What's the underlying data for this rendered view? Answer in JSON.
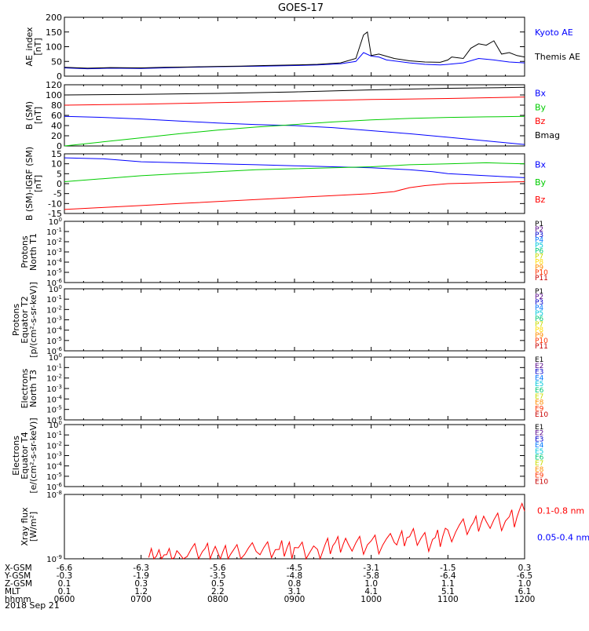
{
  "chart_data": {
    "title": "GOES-17",
    "date": "2018 Sep 21",
    "x_axis": {
      "label": "hhmm",
      "ticks": [
        "0600",
        "0700",
        "0800",
        "0900",
        "1000",
        "1100",
        "1200"
      ]
    },
    "ephemeris": {
      "rows": [
        {
          "label": "X-GSM",
          "values": [
            "-6.6",
            "-6.3",
            "-5.6",
            "-4.5",
            "-3.1",
            "-1.5",
            "0.3"
          ]
        },
        {
          "label": "Y-GSM",
          "values": [
            "-0.3",
            "-1.9",
            "-3.5",
            "-4.8",
            "-5.8",
            "-6.4",
            "-6.5"
          ]
        },
        {
          "label": "Z-GSM",
          "values": [
            "0.1",
            "0.3",
            "0.5",
            "0.8",
            "1.0",
            "1.1",
            "1.0"
          ]
        },
        {
          "label": "MLT",
          "values": [
            "0.1",
            "1.2",
            "2.2",
            "3.1",
            "4.1",
            "5.1",
            "6.1"
          ]
        }
      ]
    },
    "panels": [
      {
        "id": "ae",
        "type": "line",
        "ylabel": [
          "AE_index",
          "[nT]"
        ],
        "ylim": [
          0,
          200
        ],
        "yticks": [
          "0",
          "50",
          "100",
          "150",
          "200"
        ],
        "legend": [
          {
            "name": "Kyoto AE",
            "color": "#0000ff"
          },
          {
            "name": "Themis AE",
            "color": "#000000"
          }
        ],
        "series": [
          {
            "name": "Kyoto AE",
            "color": "#0000ff",
            "x": [
              6.0,
              6.3,
              6.6,
              7.0,
              7.3,
              7.6,
              8.0,
              8.3,
              8.6,
              9.0,
              9.3,
              9.6,
              9.8,
              9.9,
              10.0,
              10.1,
              10.2,
              10.5,
              10.7,
              10.9,
              11.0,
              11.2,
              11.4,
              11.6,
              11.8,
              12.0
            ],
            "values": [
              28,
              25,
              27,
              26,
              28,
              30,
              32,
              33,
              34,
              36,
              38,
              42,
              50,
              80,
              68,
              65,
              55,
              45,
              40,
              38,
              40,
              45,
              60,
              55,
              48,
              45
            ]
          },
          {
            "name": "Themis AE",
            "color": "#000000",
            "x": [
              6.0,
              6.3,
              6.6,
              7.0,
              7.3,
              7.6,
              8.0,
              8.3,
              8.6,
              9.0,
              9.3,
              9.6,
              9.8,
              9.9,
              9.95,
              10.0,
              10.1,
              10.3,
              10.5,
              10.7,
              10.9,
              11.0,
              11.05,
              11.2,
              11.3,
              11.4,
              11.5,
              11.6,
              11.7,
              11.8,
              11.9,
              12.0
            ],
            "values": [
              30,
              27,
              29,
              28,
              30,
              31,
              33,
              34,
              36,
              38,
              40,
              45,
              60,
              140,
              150,
              70,
              75,
              60,
              52,
              48,
              47,
              55,
              65,
              60,
              95,
              110,
              105,
              120,
              75,
              80,
              70,
              65
            ]
          }
        ]
      },
      {
        "id": "bsm",
        "type": "line",
        "ylabel": [
          "B (SM)",
          "[nT]"
        ],
        "ylim": [
          0,
          120
        ],
        "yticks": [
          "0",
          "20",
          "40",
          "60",
          "80",
          "100",
          "120"
        ],
        "legend": [
          {
            "name": "Bx",
            "color": "#0000ff"
          },
          {
            "name": "By",
            "color": "#00cc00"
          },
          {
            "name": "Bz",
            "color": "#ff0000"
          },
          {
            "name": "Bmag",
            "color": "#000000"
          }
        ],
        "series": [
          {
            "name": "Bmag",
            "color": "#000000",
            "x": [
              6,
              7,
              8,
              9,
              10,
              11,
              12
            ],
            "values": [
              100,
              101,
              103,
              106,
              110,
              113,
              115
            ]
          },
          {
            "name": "Bz",
            "color": "#ff0000",
            "x": [
              6,
              7,
              8,
              9,
              10,
              11,
              12
            ],
            "values": [
              80,
              82,
              85,
              88,
              91,
              93,
              96
            ]
          },
          {
            "name": "Bx",
            "color": "#0000ff",
            "x": [
              6,
              6.5,
              7,
              7.5,
              8,
              8.5,
              9,
              9.5,
              10,
              10.5,
              11,
              11.5,
              12
            ],
            "values": [
              58,
              56,
              53,
              49,
              45,
              42,
              40,
              36,
              30,
              24,
              17,
              10,
              3
            ]
          },
          {
            "name": "By",
            "color": "#00cc00",
            "x": [
              6,
              6.5,
              7,
              7.5,
              8,
              8.5,
              9,
              9.5,
              10,
              10.5,
              11,
              11.5,
              12
            ],
            "values": [
              0,
              8,
              16,
              24,
              31,
              37,
              42,
              47,
              51,
              54,
              56,
              57,
              58
            ]
          }
        ]
      },
      {
        "id": "bsm_igrf",
        "type": "line",
        "ylabel": [
          "B (SM)-IGRF (SM)",
          "[nT]"
        ],
        "ylim": [
          -15,
          15
        ],
        "yticks": [
          "-15",
          "-10",
          "-5",
          "0",
          "5",
          "10",
          "15"
        ],
        "legend": [
          {
            "name": "Bx",
            "color": "#0000ff"
          },
          {
            "name": "By",
            "color": "#00cc00"
          },
          {
            "name": "Bz",
            "color": "#ff0000"
          }
        ],
        "series": [
          {
            "name": "Bx",
            "color": "#0000ff",
            "x": [
              6,
              6.5,
              7,
              7.5,
              8,
              8.5,
              9,
              9.5,
              10,
              10.5,
              10.8,
              11,
              11.5,
              12
            ],
            "values": [
              13,
              12.5,
              11,
              10.5,
              10,
              9.5,
              9,
              8.5,
              8,
              7,
              6,
              5,
              4,
              3
            ]
          },
          {
            "name": "By",
            "color": "#00cc00",
            "x": [
              6,
              6.5,
              7,
              7.5,
              8,
              8.5,
              9,
              9.5,
              10,
              10.5,
              11,
              11.5,
              12
            ],
            "values": [
              1,
              2.5,
              4,
              5,
              6,
              7,
              7.5,
              8,
              8.5,
              9.5,
              10,
              10.5,
              10
            ]
          },
          {
            "name": "Bz",
            "color": "#ff0000",
            "x": [
              6,
              6.5,
              7,
              7.5,
              8,
              8.5,
              9,
              9.5,
              10,
              10.3,
              10.5,
              10.7,
              11,
              11.5,
              12
            ],
            "values": [
              -13,
              -12,
              -11,
              -10,
              -9,
              -8,
              -7,
              -6,
              -5,
              -4,
              -2,
              -1,
              0,
              0.5,
              1
            ]
          }
        ]
      },
      {
        "id": "protons_n",
        "type": "line",
        "ylabel": [
          "Protons",
          "North T1"
        ],
        "yticks": [
          "10^-6",
          "10^-5",
          "10^-4",
          "10^-3",
          "10^-2",
          "10^-1",
          "10^0"
        ],
        "legend": [
          {
            "name": "P1",
            "color": "#000000"
          },
          {
            "name": "P2",
            "color": "#5a0a8c"
          },
          {
            "name": "P3",
            "color": "#0000cc"
          },
          {
            "name": "P4",
            "color": "#0078ff"
          },
          {
            "name": "P5",
            "color": "#00c8dc"
          },
          {
            "name": "P6",
            "color": "#00c878"
          },
          {
            "name": "P7",
            "color": "#c8dc00"
          },
          {
            "name": "P8",
            "color": "#ffdc00"
          },
          {
            "name": "P9",
            "color": "#ff8c00"
          },
          {
            "name": "P10",
            "color": "#ff3200"
          },
          {
            "name": "P11",
            "color": "#c80000"
          }
        ],
        "series": []
      },
      {
        "id": "protons_e",
        "type": "line",
        "ylabel": [
          "Protons",
          "Equator T2",
          "[p/(cm²-s-sr-keV)]"
        ],
        "yticks": [
          "10^-6",
          "10^-5",
          "10^-4",
          "10^-3",
          "10^-2",
          "10^-1",
          "10^0"
        ],
        "legend": [
          {
            "name": "P1",
            "color": "#000000"
          },
          {
            "name": "P2",
            "color": "#5a0a8c"
          },
          {
            "name": "P3",
            "color": "#0000cc"
          },
          {
            "name": "P4",
            "color": "#0078ff"
          },
          {
            "name": "P5",
            "color": "#00c8dc"
          },
          {
            "name": "P6",
            "color": "#00c878"
          },
          {
            "name": "P7",
            "color": "#c8dc00"
          },
          {
            "name": "P8",
            "color": "#ffdc00"
          },
          {
            "name": "P9",
            "color": "#ff8c00"
          },
          {
            "name": "P10",
            "color": "#ff3200"
          },
          {
            "name": "P11",
            "color": "#c80000"
          }
        ],
        "series": []
      },
      {
        "id": "electrons_n",
        "type": "line",
        "ylabel": [
          "Electrons",
          "North T3"
        ],
        "yticks": [
          "10^-6",
          "10^-5",
          "10^-4",
          "10^-3",
          "10^-2",
          "10^-1",
          "10^0"
        ],
        "legend": [
          {
            "name": "E1",
            "color": "#000000"
          },
          {
            "name": "E2",
            "color": "#5a0a8c"
          },
          {
            "name": "E3",
            "color": "#0000cc"
          },
          {
            "name": "E4",
            "color": "#0078ff"
          },
          {
            "name": "E5",
            "color": "#00c8dc"
          },
          {
            "name": "E6",
            "color": "#00c878"
          },
          {
            "name": "E7",
            "color": "#c8dc00"
          },
          {
            "name": "E8",
            "color": "#ff8c00"
          },
          {
            "name": "E9",
            "color": "#ff3200"
          },
          {
            "name": "E10",
            "color": "#c80000"
          }
        ],
        "series": []
      },
      {
        "id": "electrons_e",
        "type": "line",
        "ylabel": [
          "Electrons",
          "Equator T4",
          "[e/(cm²-s-sr-keV)]"
        ],
        "yticks": [
          "10^-6",
          "10^-5",
          "10^-4",
          "10^-3",
          "10^-2",
          "10^-1",
          "10^0"
        ],
        "legend": [
          {
            "name": "E1",
            "color": "#000000"
          },
          {
            "name": "E2",
            "color": "#5a0a8c"
          },
          {
            "name": "E3",
            "color": "#0000cc"
          },
          {
            "name": "E4",
            "color": "#0078ff"
          },
          {
            "name": "E5",
            "color": "#00c8dc"
          },
          {
            "name": "E6",
            "color": "#00c878"
          },
          {
            "name": "E7",
            "color": "#c8dc00"
          },
          {
            "name": "E8",
            "color": "#ff8c00"
          },
          {
            "name": "E9",
            "color": "#ff3200"
          },
          {
            "name": "E10",
            "color": "#c80000"
          }
        ],
        "series": []
      },
      {
        "id": "xray",
        "type": "line",
        "ylabel": [
          "Xray flux",
          "[W/m²]"
        ],
        "yticks": [
          "10^-9",
          "10^-8"
        ],
        "legend": [
          {
            "name": "0.1-0.8 nm",
            "color": "#ff0000"
          },
          {
            "name": "0.05-0.4 nm",
            "color": "#0000ff"
          }
        ],
        "series": [
          {
            "name": "0.1-0.8 nm",
            "color": "#ff0000",
            "x": [
              7.1,
              7.3,
              7.5,
              7.8,
              8.0,
              8.2,
              8.5,
              8.8,
              9.0,
              9.3,
              9.5,
              9.7,
              10.0,
              10.3,
              10.5,
              10.8,
              11.0,
              11.3,
              11.5,
              11.8,
              12.0
            ],
            "values": [
              1.05e-09,
              1.15e-09,
              1.2e-09,
              1.3e-09,
              1.25e-09,
              1.35e-09,
              1.3e-09,
              1.4e-09,
              1.5e-09,
              1.4e-09,
              1.6e-09,
              1.7e-09,
              1.9e-09,
              1.8e-09,
              2.2e-09,
              2e-09,
              2.8e-09,
              3.2e-09,
              3.8e-09,
              4.5e-09,
              5.5e-09
            ]
          }
        ]
      }
    ]
  }
}
